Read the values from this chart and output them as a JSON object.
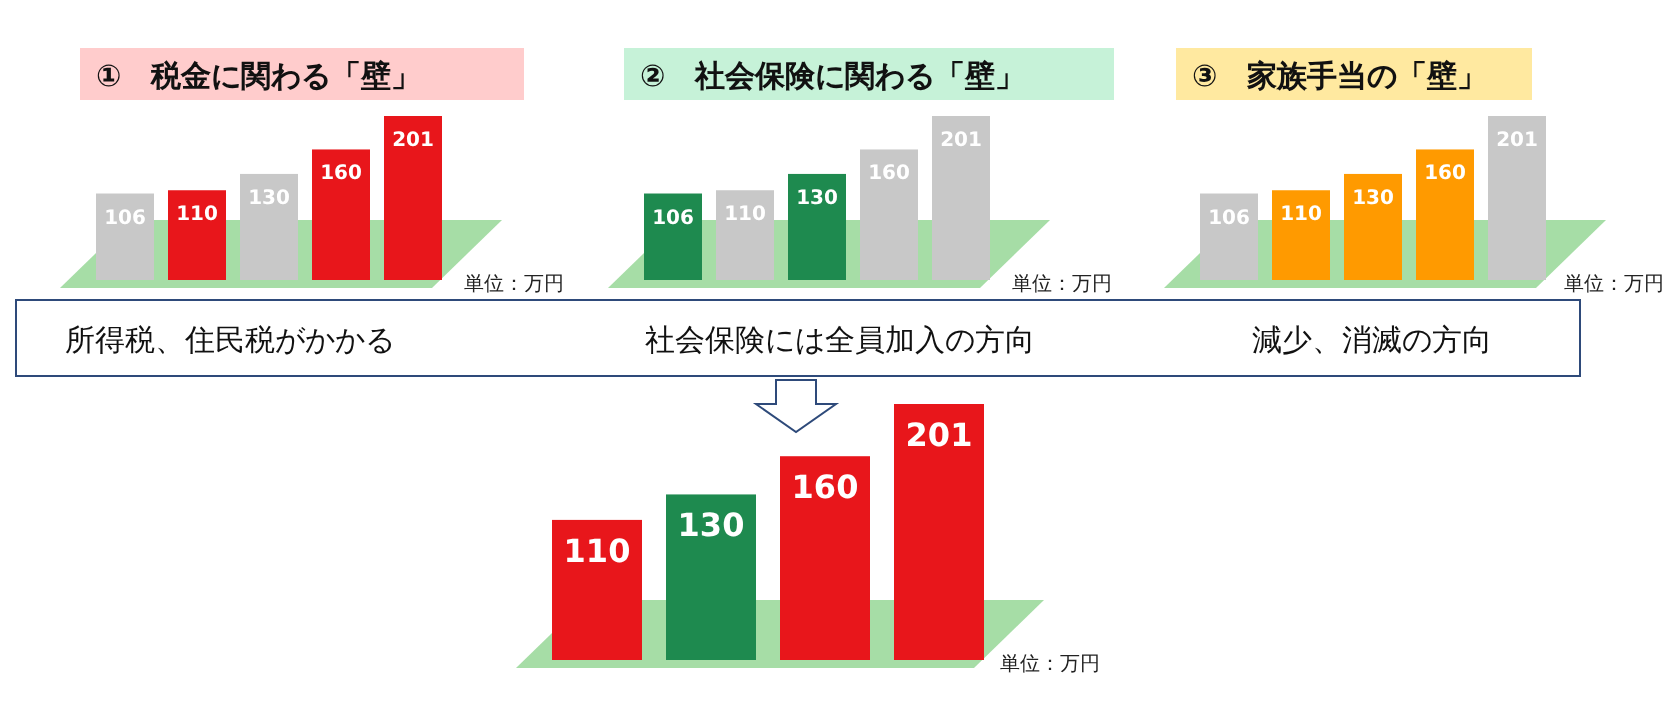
{
  "chart_data": [
    {
      "type": "bar",
      "title": "①　税金に関わる「壁」",
      "categories": [
        null,
        null,
        null,
        null,
        null
      ],
      "values": [
        106,
        110,
        130,
        160,
        201
      ],
      "colors": [
        "#c8c8c8",
        "#e8161b",
        "#c8c8c8",
        "#e8161b",
        "#e8161b"
      ],
      "data_labels": true,
      "annotations": [
        "単位：万円",
        "所得税、住民税がかかる"
      ]
    },
    {
      "type": "bar",
      "title": "②　社会保険に関わる「壁」",
      "categories": [
        null,
        null,
        null,
        null,
        null
      ],
      "values": [
        106,
        110,
        130,
        160,
        201
      ],
      "colors": [
        "#1e8a4f",
        "#c8c8c8",
        "#1e8a4f",
        "#c8c8c8",
        "#c8c8c8"
      ],
      "data_labels": true,
      "annotations": [
        "単位：万円",
        "社会保険には全員加入の方向"
      ]
    },
    {
      "type": "bar",
      "title": "③　家族手当の「壁」",
      "categories": [
        null,
        null,
        null,
        null,
        null
      ],
      "values": [
        106,
        110,
        130,
        160,
        201
      ],
      "colors": [
        "#c8c8c8",
        "#ff9a00",
        "#ff9a00",
        "#ff9a00",
        "#c8c8c8"
      ],
      "data_labels": true,
      "annotations": [
        "単位：万円",
        "減少、消滅の方向"
      ]
    },
    {
      "type": "bar",
      "categories": [
        null,
        null,
        null,
        null
      ],
      "values": [
        110,
        130,
        160,
        201
      ],
      "colors": [
        "#e8161b",
        "#1e8a4f",
        "#e8161b",
        "#e8161b"
      ],
      "data_labels": true,
      "annotations": [
        "単位：万円"
      ]
    }
  ]
}
